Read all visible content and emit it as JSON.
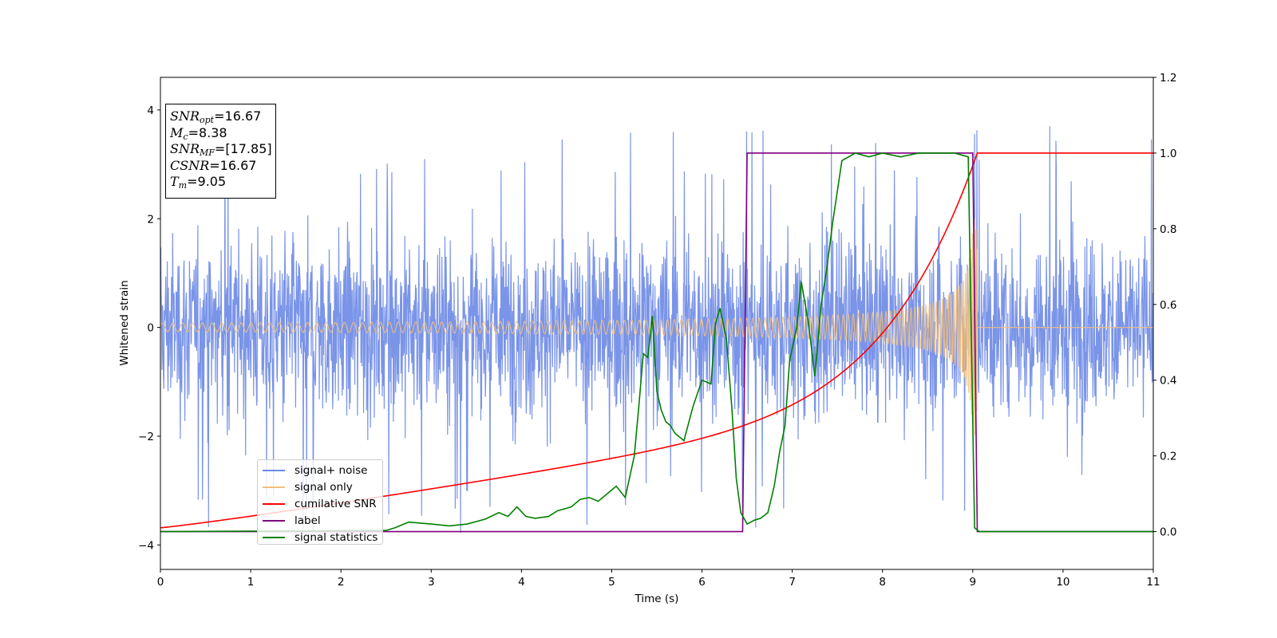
{
  "chart_data": {
    "type": "line",
    "xlabel": "Time (s)",
    "ylabel": "Whitened strain",
    "xlim": [
      0,
      11
    ],
    "ylim_left": [
      -4.45,
      4.6
    ],
    "ylim_right": [
      -0.1,
      1.2
    ],
    "x_ticks": [
      "0",
      "1",
      "2",
      "3",
      "4",
      "5",
      "6",
      "7",
      "8",
      "9",
      "10",
      "11"
    ],
    "y_ticks_left": [
      "-4",
      "-2",
      "0",
      "2",
      "4"
    ],
    "y_ticks_right": [
      "0.0",
      "0.2",
      "0.4",
      "0.6",
      "0.8",
      "1.0",
      "1.2"
    ],
    "grid": false,
    "legend_placement": "lower-left",
    "series": [
      {
        "name": "signal+ noise",
        "axis": "left",
        "color": "#6b88e5",
        "description_points": {
          "x": [
            0,
            11
          ],
          "y_envelope": [
            -3.5,
            4.17
          ]
        }
      },
      {
        "name": "signal only",
        "axis": "left",
        "color": "#f5c07a",
        "chirp": {
          "start": 0,
          "merger": 9.05,
          "amp_start": 0.08,
          "amp_end": 2.0
        }
      },
      {
        "name": "cumilative SNR",
        "axis": "right",
        "color": "#ff0000",
        "x": [
          0,
          1,
          2,
          3,
          4,
          5,
          6,
          6.5,
          7,
          7.5,
          8,
          8.5,
          8.8,
          9.0,
          9.05,
          11
        ],
        "y": [
          0.01,
          0.07,
          0.1,
          0.13,
          0.16,
          0.2,
          0.25,
          0.29,
          0.34,
          0.41,
          0.51,
          0.65,
          0.78,
          0.95,
          1.0,
          1.0
        ]
      },
      {
        "name": "label",
        "axis": "right",
        "color": "#800080",
        "x": [
          0,
          6.45,
          6.5,
          9.0,
          9.05,
          11
        ],
        "y": [
          0,
          0,
          1,
          1,
          0,
          0
        ]
      },
      {
        "name": "signal statistics",
        "axis": "right",
        "color": "#008000",
        "x": [
          0,
          2.5,
          2.6,
          2.75,
          3.0,
          3.2,
          3.4,
          3.6,
          3.75,
          3.85,
          3.95,
          4.05,
          4.15,
          4.3,
          4.4,
          4.55,
          4.65,
          4.75,
          4.85,
          4.95,
          5.05,
          5.15,
          5.25,
          5.3,
          5.35,
          5.4,
          5.45,
          5.5,
          5.55,
          5.6,
          5.65,
          5.7,
          5.8,
          5.9,
          6.0,
          6.1,
          6.15,
          6.2,
          6.27,
          6.33,
          6.38,
          6.43,
          6.5,
          6.58,
          6.65,
          6.73,
          6.8,
          6.86,
          6.92,
          6.97,
          7.05,
          7.1,
          7.18,
          7.25,
          7.32,
          7.38,
          7.45,
          7.55,
          7.7,
          7.85,
          8.0,
          8.2,
          8.4,
          8.6,
          8.8,
          8.95,
          9.02,
          9.07,
          9.1,
          9.2,
          11
        ],
        "y": [
          0.0,
          0.003,
          0.01,
          0.025,
          0.02,
          0.015,
          0.02,
          0.033,
          0.05,
          0.04,
          0.065,
          0.04,
          0.035,
          0.04,
          0.055,
          0.065,
          0.085,
          0.09,
          0.08,
          0.1,
          0.12,
          0.09,
          0.2,
          0.33,
          0.47,
          0.46,
          0.57,
          0.37,
          0.32,
          0.29,
          0.28,
          0.26,
          0.24,
          0.33,
          0.4,
          0.39,
          0.55,
          0.59,
          0.51,
          0.33,
          0.14,
          0.05,
          0.02,
          0.03,
          0.035,
          0.05,
          0.12,
          0.21,
          0.28,
          0.45,
          0.54,
          0.66,
          0.55,
          0.41,
          0.6,
          0.69,
          0.82,
          0.98,
          1.0,
          0.99,
          1.0,
          0.99,
          1.0,
          1.0,
          1.0,
          0.99,
          0.01,
          0.0,
          0.0,
          0.0,
          0.0
        ]
      }
    ]
  },
  "annotation": {
    "snr_opt": {
      "sym": "SNR",
      "sub": "opt",
      "value": "=16.67"
    },
    "mc": {
      "sym": "M",
      "sub": "c",
      "value": "=8.38"
    },
    "snr_mf": {
      "sym": "SNR",
      "sub": "MF",
      "value": "=[17.85]"
    },
    "csnr": {
      "sym": "CSNR",
      "sub": "",
      "value": "=16.67"
    },
    "tm": {
      "sym": "T",
      "sub": "m",
      "value": "=9.05"
    }
  }
}
